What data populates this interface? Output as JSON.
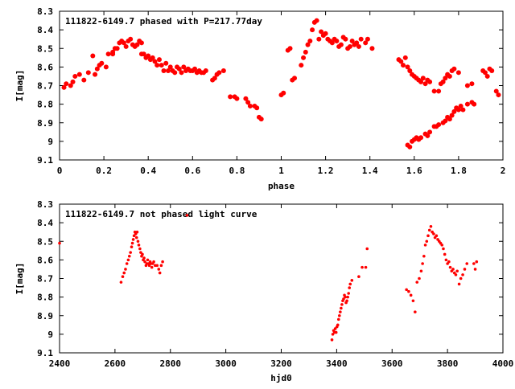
{
  "chart_data": [
    {
      "type": "scatter",
      "title": "111822-6149.7 phased with P=217.77day",
      "xlabel": "phase",
      "ylabel": "I[mag]",
      "xlim": [
        0,
        2
      ],
      "ylim": [
        9.1,
        8.3
      ],
      "y_inverted": true,
      "xticks": [
        "0",
        "0.2",
        "0.4",
        "0.6",
        "0.8",
        "1",
        "1.2",
        "1.4",
        "1.6",
        "1.8",
        "2"
      ],
      "yticks": [
        "8.3",
        "8.4",
        "8.5",
        "8.6",
        "8.7",
        "8.8",
        "8.9",
        "9",
        "9.1"
      ],
      "marker_color": "#ff0000",
      "grid": false,
      "points": [
        [
          0.02,
          8.71
        ],
        [
          0.03,
          8.69
        ],
        [
          0.05,
          8.7
        ],
        [
          0.06,
          8.68
        ],
        [
          0.07,
          8.65
        ],
        [
          0.09,
          8.64
        ],
        [
          0.11,
          8.67
        ],
        [
          0.13,
          8.63
        ],
        [
          0.15,
          8.54
        ],
        [
          0.16,
          8.64
        ],
        [
          0.17,
          8.61
        ],
        [
          0.18,
          8.59
        ],
        [
          0.19,
          8.58
        ],
        [
          0.21,
          8.6
        ],
        [
          0.22,
          8.53
        ],
        [
          0.24,
          8.53
        ],
        [
          0.24,
          8.52
        ],
        [
          0.25,
          8.5
        ],
        [
          0.26,
          8.5
        ],
        [
          0.27,
          8.47
        ],
        [
          0.28,
          8.46
        ],
        [
          0.29,
          8.47
        ],
        [
          0.3,
          8.49
        ],
        [
          0.31,
          8.46
        ],
        [
          0.32,
          8.45
        ],
        [
          0.33,
          8.48
        ],
        [
          0.34,
          8.49
        ],
        [
          0.35,
          8.48
        ],
        [
          0.36,
          8.46
        ],
        [
          0.37,
          8.47
        ],
        [
          0.37,
          8.53
        ],
        [
          0.38,
          8.53
        ],
        [
          0.39,
          8.55
        ],
        [
          0.4,
          8.54
        ],
        [
          0.41,
          8.56
        ],
        [
          0.42,
          8.55
        ],
        [
          0.43,
          8.57
        ],
        [
          0.44,
          8.59
        ],
        [
          0.45,
          8.56
        ],
        [
          0.46,
          8.59
        ],
        [
          0.47,
          8.62
        ],
        [
          0.48,
          8.58
        ],
        [
          0.49,
          8.62
        ],
        [
          0.5,
          8.6
        ],
        [
          0.51,
          8.62
        ],
        [
          0.52,
          8.63
        ],
        [
          0.53,
          8.6
        ],
        [
          0.54,
          8.61
        ],
        [
          0.55,
          8.63
        ],
        [
          0.56,
          8.6
        ],
        [
          0.57,
          8.62
        ],
        [
          0.58,
          8.61
        ],
        [
          0.59,
          8.62
        ],
        [
          0.6,
          8.62
        ],
        [
          0.61,
          8.61
        ],
        [
          0.62,
          8.63
        ],
        [
          0.63,
          8.62
        ],
        [
          0.64,
          8.63
        ],
        [
          0.65,
          8.63
        ],
        [
          0.66,
          8.62
        ],
        [
          0.69,
          8.67
        ],
        [
          0.7,
          8.66
        ],
        [
          0.71,
          8.64
        ],
        [
          0.72,
          8.63
        ],
        [
          0.74,
          8.62
        ],
        [
          0.77,
          8.76
        ],
        [
          0.79,
          8.76
        ],
        [
          0.8,
          8.77
        ],
        [
          0.84,
          8.77
        ],
        [
          0.85,
          8.79
        ],
        [
          0.86,
          8.81
        ],
        [
          0.88,
          8.81
        ],
        [
          0.89,
          8.82
        ],
        [
          0.9,
          8.87
        ],
        [
          0.91,
          8.88
        ],
        [
          1.0,
          8.75
        ],
        [
          1.01,
          8.74
        ],
        [
          1.03,
          8.51
        ],
        [
          1.04,
          8.5
        ],
        [
          1.05,
          8.67
        ],
        [
          1.06,
          8.66
        ],
        [
          1.09,
          8.59
        ],
        [
          1.1,
          8.55
        ],
        [
          1.11,
          8.52
        ],
        [
          1.12,
          8.48
        ],
        [
          1.13,
          8.46
        ],
        [
          1.14,
          8.4
        ],
        [
          1.15,
          8.36
        ],
        [
          1.16,
          8.35
        ],
        [
          1.17,
          8.45
        ],
        [
          1.18,
          8.41
        ],
        [
          1.19,
          8.43
        ],
        [
          1.2,
          8.42
        ],
        [
          1.21,
          8.45
        ],
        [
          1.22,
          8.46
        ],
        [
          1.23,
          8.47
        ],
        [
          1.24,
          8.45
        ],
        [
          1.25,
          8.46
        ],
        [
          1.26,
          8.49
        ],
        [
          1.27,
          8.48
        ],
        [
          1.28,
          8.44
        ],
        [
          1.29,
          8.45
        ],
        [
          1.3,
          8.5
        ],
        [
          1.31,
          8.49
        ],
        [
          1.32,
          8.46
        ],
        [
          1.33,
          8.48
        ],
        [
          1.34,
          8.47
        ],
        [
          1.35,
          8.49
        ],
        [
          1.36,
          8.45
        ],
        [
          1.38,
          8.47
        ],
        [
          1.39,
          8.45
        ],
        [
          1.41,
          8.5
        ],
        [
          1.53,
          8.56
        ],
        [
          1.54,
          8.57
        ],
        [
          1.55,
          8.59
        ],
        [
          1.56,
          8.55
        ],
        [
          1.57,
          8.6
        ],
        [
          1.58,
          8.62
        ],
        [
          1.59,
          8.64
        ],
        [
          1.6,
          8.65
        ],
        [
          1.61,
          8.66
        ],
        [
          1.62,
          8.67
        ],
        [
          1.63,
          8.68
        ],
        [
          1.64,
          8.66
        ],
        [
          1.65,
          8.69
        ],
        [
          1.66,
          8.67
        ],
        [
          1.67,
          8.68
        ],
        [
          1.57,
          9.02
        ],
        [
          1.58,
          9.03
        ],
        [
          1.59,
          9.0
        ],
        [
          1.6,
          8.99
        ],
        [
          1.61,
          8.98
        ],
        [
          1.62,
          8.99
        ],
        [
          1.63,
          8.98
        ],
        [
          1.65,
          8.96
        ],
        [
          1.66,
          8.97
        ],
        [
          1.67,
          8.95
        ],
        [
          1.69,
          8.92
        ],
        [
          1.7,
          8.92
        ],
        [
          1.71,
          8.91
        ],
        [
          1.73,
          8.9
        ],
        [
          1.74,
          8.89
        ],
        [
          1.75,
          8.87
        ],
        [
          1.76,
          8.88
        ],
        [
          1.77,
          8.86
        ],
        [
          1.78,
          8.84
        ],
        [
          1.79,
          8.82
        ],
        [
          1.8,
          8.83
        ],
        [
          1.81,
          8.81
        ],
        [
          1.82,
          8.83
        ],
        [
          1.84,
          8.8
        ],
        [
          1.86,
          8.79
        ],
        [
          1.87,
          8.8
        ],
        [
          1.69,
          8.73
        ],
        [
          1.71,
          8.73
        ],
        [
          1.72,
          8.69
        ],
        [
          1.73,
          8.68
        ],
        [
          1.74,
          8.66
        ],
        [
          1.75,
          8.64
        ],
        [
          1.76,
          8.65
        ],
        [
          1.77,
          8.62
        ],
        [
          1.78,
          8.61
        ],
        [
          1.8,
          8.63
        ],
        [
          1.84,
          8.7
        ],
        [
          1.86,
          8.69
        ],
        [
          1.91,
          8.62
        ],
        [
          1.92,
          8.63
        ],
        [
          1.93,
          8.65
        ],
        [
          1.94,
          8.61
        ],
        [
          1.95,
          8.62
        ],
        [
          1.97,
          8.73
        ],
        [
          1.98,
          8.75
        ]
      ]
    },
    {
      "type": "scatter",
      "title": "111822-6149.7 not phased light curve",
      "xlabel": "hjd0",
      "ylabel": "I[mag]",
      "xlim": [
        2400,
        4000
      ],
      "ylim": [
        9.1,
        8.3
      ],
      "y_inverted": true,
      "xticks": [
        "2400",
        "2600",
        "2800",
        "3000",
        "3200",
        "3400",
        "3600",
        "3800",
        "4000"
      ],
      "yticks": [
        "8.3",
        "8.4",
        "8.5",
        "8.6",
        "8.7",
        "8.8",
        "8.9",
        "9",
        "9.1"
      ],
      "marker_color": "#ff0000",
      "grid": false,
      "points": [
        [
          2400,
          8.51
        ],
        [
          2622,
          8.72
        ],
        [
          2628,
          8.69
        ],
        [
          2633,
          8.67
        ],
        [
          2638,
          8.65
        ],
        [
          2643,
          8.62
        ],
        [
          2648,
          8.6
        ],
        [
          2652,
          8.58
        ],
        [
          2656,
          8.56
        ],
        [
          2660,
          8.53
        ],
        [
          2663,
          8.51
        ],
        [
          2666,
          8.49
        ],
        [
          2669,
          8.47
        ],
        [
          2672,
          8.45
        ],
        [
          2675,
          8.46
        ],
        [
          2678,
          8.48
        ],
        [
          2680,
          8.45
        ],
        [
          2683,
          8.5
        ],
        [
          2686,
          8.52
        ],
        [
          2690,
          8.54
        ],
        [
          2693,
          8.56
        ],
        [
          2696,
          8.58
        ],
        [
          2699,
          8.57
        ],
        [
          2702,
          8.6
        ],
        [
          2705,
          8.59
        ],
        [
          2708,
          8.61
        ],
        [
          2712,
          8.63
        ],
        [
          2715,
          8.62
        ],
        [
          2718,
          8.6
        ],
        [
          2721,
          8.62
        ],
        [
          2724,
          8.63
        ],
        [
          2727,
          8.61
        ],
        [
          2730,
          8.62
        ],
        [
          2733,
          8.64
        ],
        [
          2736,
          8.62
        ],
        [
          2740,
          8.61
        ],
        [
          2745,
          8.63
        ],
        [
          2752,
          8.63
        ],
        [
          2758,
          8.65
        ],
        [
          2762,
          8.67
        ],
        [
          2767,
          8.63
        ],
        [
          2772,
          8.61
        ],
        [
          2860,
          8.36
        ],
        [
          3383,
          9.03
        ],
        [
          3386,
          9.0
        ],
        [
          3389,
          8.98
        ],
        [
          3392,
          8.99
        ],
        [
          3395,
          8.97
        ],
        [
          3398,
          8.99
        ],
        [
          3401,
          8.96
        ],
        [
          3404,
          8.95
        ],
        [
          3407,
          8.92
        ],
        [
          3410,
          8.9
        ],
        [
          3413,
          8.88
        ],
        [
          3416,
          8.86
        ],
        [
          3419,
          8.84
        ],
        [
          3422,
          8.82
        ],
        [
          3425,
          8.81
        ],
        [
          3428,
          8.79
        ],
        [
          3431,
          8.8
        ],
        [
          3434,
          8.83
        ],
        [
          3437,
          8.82
        ],
        [
          3440,
          8.8
        ],
        [
          3443,
          8.78
        ],
        [
          3446,
          8.75
        ],
        [
          3449,
          8.73
        ],
        [
          3455,
          8.71
        ],
        [
          3480,
          8.69
        ],
        [
          3492,
          8.64
        ],
        [
          3505,
          8.64
        ],
        [
          3510,
          8.54
        ],
        [
          3652,
          8.76
        ],
        [
          3660,
          8.77
        ],
        [
          3668,
          8.79
        ],
        [
          3676,
          8.82
        ],
        [
          3683,
          8.88
        ],
        [
          3690,
          8.72
        ],
        [
          3698,
          8.7
        ],
        [
          3705,
          8.66
        ],
        [
          3710,
          8.62
        ],
        [
          3715,
          8.58
        ],
        [
          3720,
          8.52
        ],
        [
          3725,
          8.5
        ],
        [
          3730,
          8.47
        ],
        [
          3735,
          8.44
        ],
        [
          3740,
          8.42
        ],
        [
          3745,
          8.45
        ],
        [
          3750,
          8.46
        ],
        [
          3755,
          8.48
        ],
        [
          3760,
          8.47
        ],
        [
          3765,
          8.49
        ],
        [
          3770,
          8.5
        ],
        [
          3775,
          8.51
        ],
        [
          3780,
          8.52
        ],
        [
          3785,
          8.54
        ],
        [
          3790,
          8.57
        ],
        [
          3795,
          8.6
        ],
        [
          3800,
          8.62
        ],
        [
          3805,
          8.61
        ],
        [
          3810,
          8.64
        ],
        [
          3815,
          8.66
        ],
        [
          3820,
          8.65
        ],
        [
          3825,
          8.67
        ],
        [
          3830,
          8.68
        ],
        [
          3835,
          8.66
        ],
        [
          3842,
          8.73
        ],
        [
          3848,
          8.7
        ],
        [
          3855,
          8.68
        ],
        [
          3862,
          8.65
        ],
        [
          3870,
          8.62
        ],
        [
          3895,
          8.62
        ],
        [
          3900,
          8.65
        ],
        [
          3905,
          8.61
        ]
      ]
    }
  ]
}
